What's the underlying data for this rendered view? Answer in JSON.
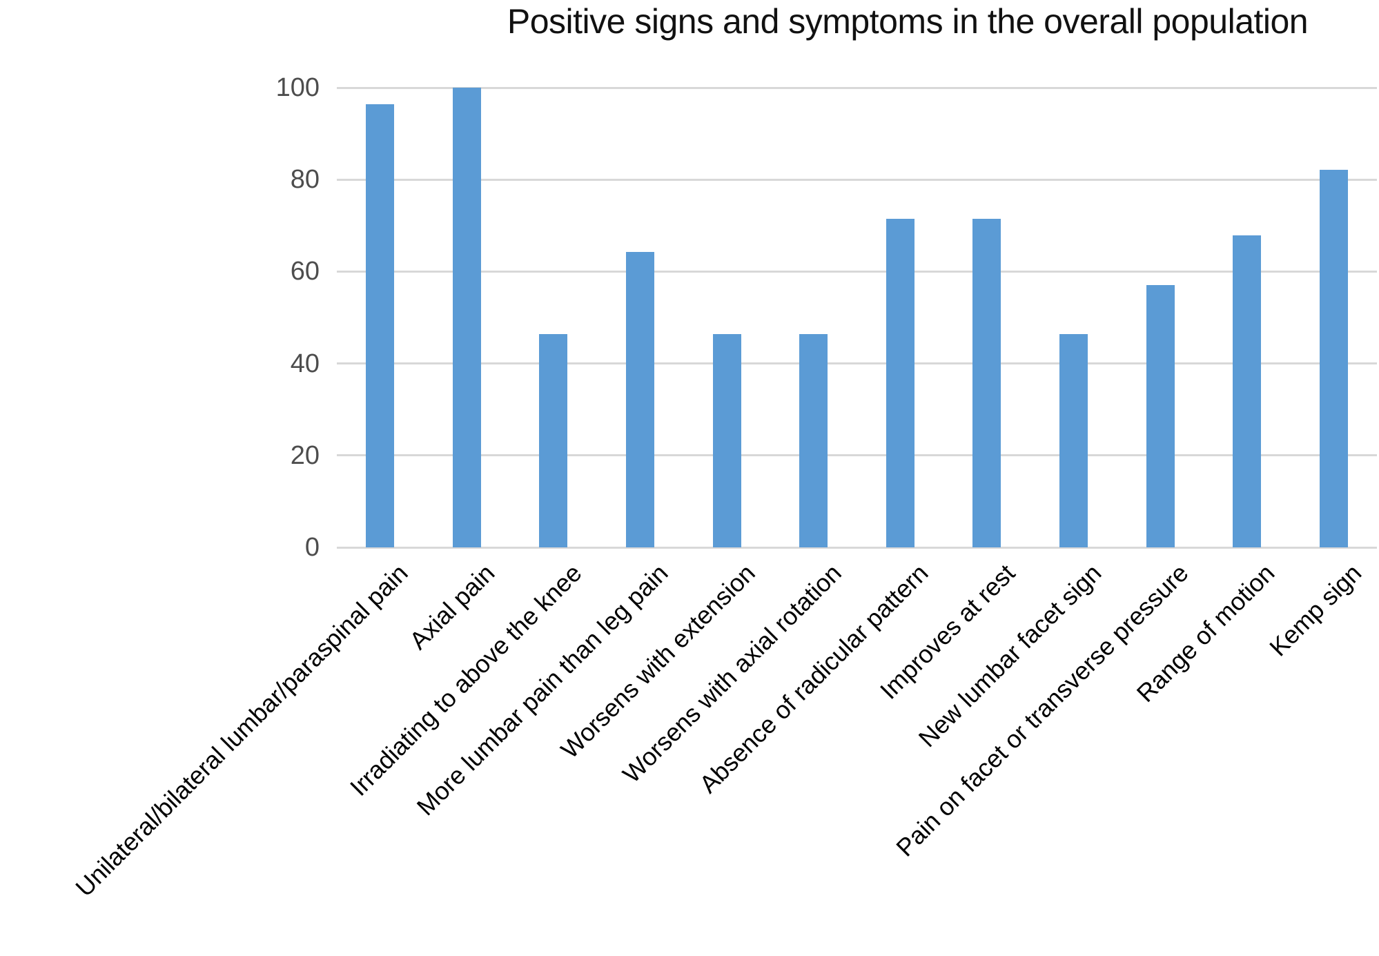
{
  "chart_data": {
    "type": "bar",
    "title": "Positive signs and symptoms in the overall population",
    "categories": [
      "Unilateral/bilateral lumbar/paraspinal pain",
      "Axial pain",
      "Irradiating to above the knee",
      "More lumbar pain than leg pain",
      "Worsens with extension",
      "Worsens with axial rotation",
      "Absence of radicular pattern",
      "Improves at rest",
      "New lumbar facet sign",
      "Pain on facet or transverse pressure",
      "Range of motion",
      "Kemp sign"
    ],
    "values": [
      96.4,
      100,
      46.4,
      64.3,
      46.4,
      46.4,
      71.4,
      71.4,
      46.4,
      57.1,
      67.9,
      82.1
    ],
    "xlabel": "",
    "ylabel": "",
    "ylim": [
      0,
      100
    ],
    "yticks": [
      0,
      20,
      40,
      60,
      80,
      100
    ],
    "grid": "horizontal",
    "legend_position": "none",
    "colors": {
      "bar": "#5B9BD5",
      "gridline": "#D8D8D8",
      "y_tick_label": "#4D4D4D",
      "category_label": "#000000",
      "title": "#111111",
      "background": "#FFFFFF"
    }
  }
}
